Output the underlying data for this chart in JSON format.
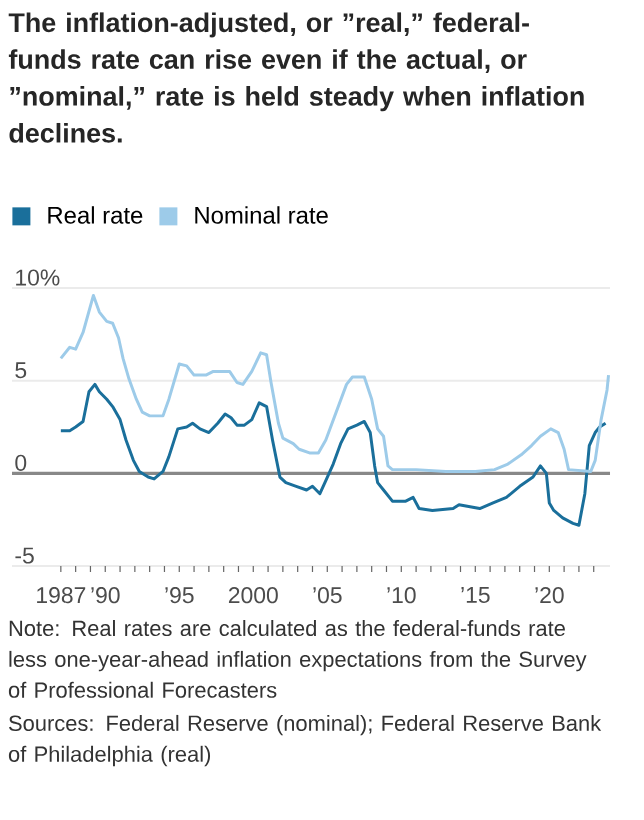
{
  "chart_data": {
    "type": "line",
    "title": "The inflation-adjusted, or ”real,” federal-funds rate can rise even if the actual, or ”nominal,” rate is held steady when inflation declines.",
    "annotations": [
      "Note: Real rates are calculated as the federal-funds rate less one-year-ahead inflation expectations from the Survey of Professional Forecasters",
      "Sources: Federal Reserve (nominal); Federal Reserve Bank of Philadelphia (real)"
    ],
    "series": [
      {
        "name": "Real rate",
        "color": "#1a6f9b",
        "x": [
          1987.0,
          1987.6,
          1988.0,
          1988.5,
          1988.9,
          1989.3,
          1989.6,
          1990.1,
          1990.5,
          1991.0,
          1991.4,
          1991.9,
          1992.3,
          1992.9,
          1993.3,
          1993.9,
          1994.3,
          1994.9,
          1995.5,
          1995.9,
          1996.4,
          1997.0,
          1997.6,
          1998.1,
          1998.5,
          1998.9,
          1999.4,
          1999.9,
          2000.4,
          2000.9,
          2001.3,
          2001.8,
          2002.2,
          2002.9,
          2003.6,
          2004.0,
          2004.5,
          2004.9,
          2005.4,
          2005.9,
          2006.4,
          2007.0,
          2007.5,
          2007.9,
          2008.2,
          2008.4,
          2008.8,
          2009.4,
          2010.3,
          2010.8,
          2011.2,
          2012.1,
          2013.5,
          2013.9,
          2015.3,
          2016.2,
          2017.1,
          2018.0,
          2018.9,
          2019.4,
          2019.8,
          2020.0,
          2020.3,
          2020.9,
          2021.6,
          2022.0,
          2022.4,
          2022.7,
          2023.1,
          2023.4,
          2023.8
        ],
        "values": [
          2.3,
          2.3,
          2.5,
          2.8,
          4.4,
          4.8,
          4.4,
          4.0,
          3.6,
          2.9,
          1.8,
          0.7,
          0.1,
          -0.2,
          -0.3,
          0.1,
          0.9,
          2.4,
          2.5,
          2.7,
          2.4,
          2.2,
          2.7,
          3.2,
          3.0,
          2.6,
          2.6,
          2.9,
          3.8,
          3.6,
          1.8,
          -0.2,
          -0.5,
          -0.7,
          -0.9,
          -0.7,
          -1.1,
          -0.4,
          0.5,
          1.6,
          2.4,
          2.6,
          2.8,
          2.2,
          0.4,
          -0.5,
          -0.9,
          -1.5,
          -1.5,
          -1.3,
          -1.9,
          -2.0,
          -1.9,
          -1.7,
          -1.9,
          -1.6,
          -1.3,
          -0.7,
          -0.2,
          0.4,
          0.0,
          -1.6,
          -2.0,
          -2.4,
          -2.7,
          -2.8,
          -1.1,
          1.5,
          2.2,
          2.5,
          2.7
        ]
      },
      {
        "name": "Nominal rate",
        "color": "#9dcbe9",
        "x": [
          1987.0,
          1987.6,
          1988.0,
          1988.5,
          1989.2,
          1989.6,
          1990.1,
          1990.5,
          1990.9,
          1991.2,
          1991.6,
          1992.1,
          1992.5,
          1993.0,
          1993.9,
          1994.3,
          1995.0,
          1995.5,
          1996.0,
          1996.8,
          1997.3,
          1998.4,
          1998.9,
          1999.3,
          1999.9,
          2000.5,
          2000.9,
          2001.2,
          2001.7,
          2002.0,
          2002.7,
          2003.1,
          2003.8,
          2004.4,
          2004.9,
          2005.6,
          2006.3,
          2006.7,
          2007.5,
          2008.0,
          2008.4,
          2008.8,
          2009.1,
          2009.4,
          2011.0,
          2013.0,
          2014.0,
          2015.0,
          2016.3,
          2017.2,
          2018.1,
          2018.8,
          2019.4,
          2020.1,
          2020.6,
          2021.0,
          2021.3,
          2022.8,
          2023.1,
          2023.5,
          2023.9,
          2024.0
        ],
        "values": [
          6.2,
          6.8,
          6.7,
          7.6,
          9.6,
          8.7,
          8.2,
          8.1,
          7.3,
          6.2,
          5.1,
          4.0,
          3.3,
          3.1,
          3.1,
          4.0,
          5.9,
          5.8,
          5.3,
          5.3,
          5.5,
          5.5,
          4.9,
          4.8,
          5.5,
          6.5,
          6.4,
          4.9,
          2.7,
          1.9,
          1.6,
          1.3,
          1.1,
          1.1,
          1.8,
          3.3,
          4.8,
          5.2,
          5.2,
          4.0,
          2.4,
          2.0,
          0.4,
          0.2,
          0.2,
          0.1,
          0.1,
          0.1,
          0.2,
          0.5,
          1.0,
          1.5,
          2.0,
          2.4,
          2.2,
          1.3,
          0.2,
          0.1,
          0.7,
          2.9,
          4.5,
          5.3
        ]
      }
    ],
    "xlim": [
      1983.7,
      2024.1
    ],
    "xticks": [
      {
        "value": 1987,
        "label": "1987"
      },
      {
        "value": 1988,
        "label": null
      },
      {
        "value": 1989,
        "label": null
      },
      {
        "value": 1990,
        "label": "’90"
      },
      {
        "value": 1991,
        "label": null
      },
      {
        "value": 1992,
        "label": null
      },
      {
        "value": 1993,
        "label": null
      },
      {
        "value": 1994,
        "label": null
      },
      {
        "value": 1995,
        "label": "’95"
      },
      {
        "value": 1996,
        "label": null
      },
      {
        "value": 1997,
        "label": null
      },
      {
        "value": 1998,
        "label": null
      },
      {
        "value": 1999,
        "label": null
      },
      {
        "value": 2000,
        "label": "2000"
      },
      {
        "value": 2001,
        "label": null
      },
      {
        "value": 2002,
        "label": null
      },
      {
        "value": 2003,
        "label": null
      },
      {
        "value": 2004,
        "label": null
      },
      {
        "value": 2005,
        "label": "’05"
      },
      {
        "value": 2006,
        "label": null
      },
      {
        "value": 2007,
        "label": null
      },
      {
        "value": 2008,
        "label": null
      },
      {
        "value": 2009,
        "label": null
      },
      {
        "value": 2010,
        "label": "’10"
      },
      {
        "value": 2011,
        "label": null
      },
      {
        "value": 2012,
        "label": null
      },
      {
        "value": 2013,
        "label": null
      },
      {
        "value": 2014,
        "label": null
      },
      {
        "value": 2015,
        "label": "’15"
      },
      {
        "value": 2016,
        "label": null
      },
      {
        "value": 2017,
        "label": null
      },
      {
        "value": 2018,
        "label": null
      },
      {
        "value": 2019,
        "label": null
      },
      {
        "value": 2020,
        "label": "’20"
      },
      {
        "value": 2021,
        "label": null
      },
      {
        "value": 2022,
        "label": null
      },
      {
        "value": 2023,
        "label": null
      }
    ],
    "ylim": [
      -5,
      10
    ],
    "yticks": [
      {
        "value": -5,
        "label": "-5"
      },
      0,
      5,
      {
        "value": 10,
        "label": "10%"
      }
    ],
    "grid": "y",
    "ref_lines": [
      {
        "axis": "y",
        "value": 0,
        "color": "#888888"
      }
    ],
    "legend": "top left"
  }
}
